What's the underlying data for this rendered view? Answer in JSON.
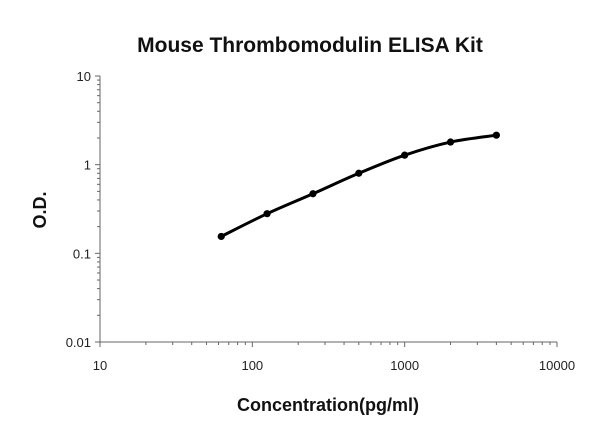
{
  "chart_data": {
    "type": "scatter",
    "title": "Mouse Thrombomodulin ELISA Kit",
    "xlabel": "Concentration(pg/ml)",
    "ylabel": "O.D.",
    "x_scale": "log",
    "y_scale": "log",
    "xlim": [
      10,
      10000
    ],
    "ylim": [
      0.01,
      10
    ],
    "x_ticks": [
      "10",
      "100",
      "1000",
      "10000"
    ],
    "y_ticks": [
      "0.01",
      "0.1",
      "1",
      "10"
    ],
    "grid": false,
    "legend": "none",
    "series": [
      {
        "x": [
          62.5,
          125,
          250,
          500,
          1000,
          2000,
          4000
        ],
        "y": [
          0.155,
          0.28,
          0.47,
          0.8,
          1.28,
          1.8,
          2.15
        ]
      }
    ],
    "colors": {
      "series": "#000000",
      "axis": "#666666"
    }
  }
}
